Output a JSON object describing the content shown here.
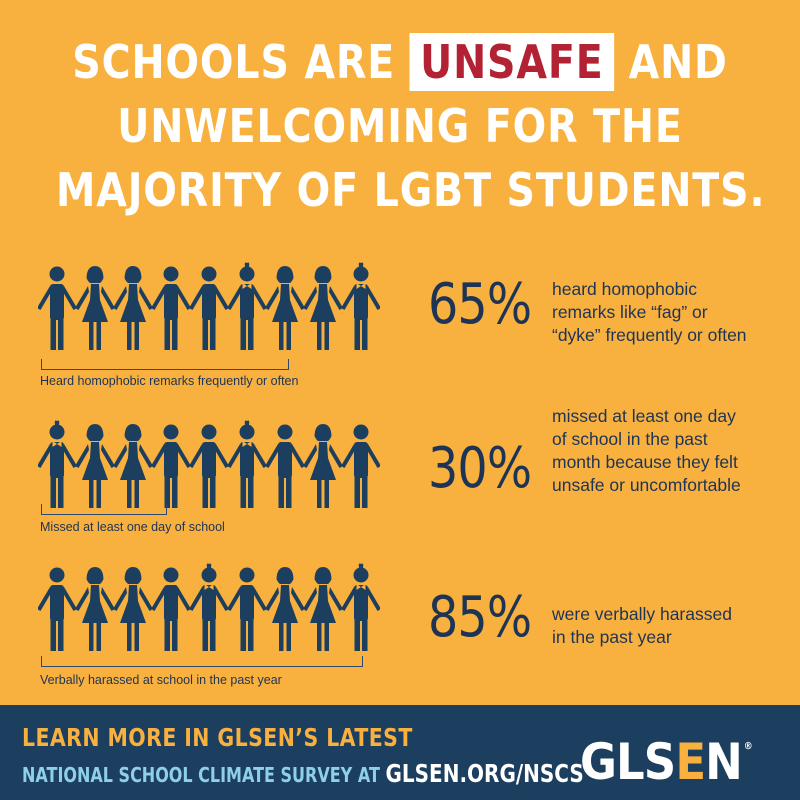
{
  "headline": {
    "line1_pre": "SCHOOLS ARE",
    "line1_highlight": "UNSAFE",
    "line1_post": "AND",
    "line2": "UNWELCOMING FOR THE",
    "line3": "MAJORITY OF LGBT STUDENTS."
  },
  "colors": {
    "background": "#F8B03F",
    "figure_dark": "#1C3E5F",
    "figure_light": "#2E9CC2",
    "highlight_text": "#B22234",
    "footer": "#1C3E5F"
  },
  "stats": [
    {
      "percent": "65%",
      "value": 65,
      "description": [
        "heard homophobic",
        "remarks like “fag” or",
        "“dyke” frequently or often"
      ],
      "caption": "Heard homophobic remarks frequently or often",
      "figures": [
        "boy",
        "girl",
        "girl",
        "boy",
        "boy",
        "boy-bowtie",
        "girl",
        "girl",
        "boy-bowtie"
      ]
    },
    {
      "percent": "30%",
      "value": 30,
      "description": [
        "missed at least one day",
        "of school in the past",
        "month because they felt",
        "unsafe or uncomfortable"
      ],
      "caption": "Missed at least one day of school",
      "figures": [
        "boy-bowtie",
        "girl",
        "girl",
        "boy",
        "boy",
        "boy-bowtie",
        "boy",
        "girl",
        "boy"
      ]
    },
    {
      "percent": "85%",
      "value": 85,
      "description": [
        "were verbally harassed",
        "in the past year"
      ],
      "caption": "Verbally harassed at school in the past year",
      "figures": [
        "boy",
        "girl",
        "girl",
        "boy",
        "boy-bowtie",
        "boy",
        "girl",
        "girl",
        "boy-bowtie"
      ]
    }
  ],
  "footer": {
    "line1": "LEARN MORE IN GLSEN’S LATEST",
    "line2": "NATIONAL SCHOOL CLIMATE SURVEY AT",
    "url": "GLSEN.ORG/NSCS",
    "logo_gls": "GLS",
    "logo_e": "E",
    "logo_n": "N",
    "logo_reg": "®"
  }
}
